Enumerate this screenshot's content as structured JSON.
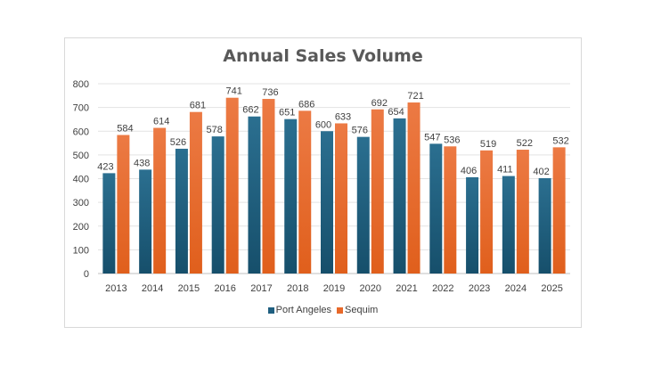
{
  "chart_data": {
    "type": "bar",
    "title": "Annual Sales Volume",
    "xlabel": "",
    "ylabel": "",
    "categories": [
      "2013",
      "2014",
      "2015",
      "2016",
      "2017",
      "2018",
      "2019",
      "2020",
      "2021",
      "2022",
      "2023",
      "2024",
      "2025"
    ],
    "series": [
      {
        "name": "Port Angeles",
        "color": "#1f5f80",
        "values": [
          423,
          438,
          526,
          578,
          662,
          651,
          600,
          576,
          654,
          547,
          406,
          411,
          402
        ]
      },
      {
        "name": "Sequim",
        "color": "#e8692a",
        "values": [
          584,
          614,
          681,
          741,
          736,
          686,
          633,
          692,
          721,
          536,
          519,
          522,
          532
        ]
      }
    ],
    "ylim": [
      0,
      800
    ],
    "yticks": [
      0,
      100,
      200,
      300,
      400,
      500,
      600,
      700,
      800
    ],
    "grid": true,
    "legend": "bottom",
    "data_labels": true
  }
}
